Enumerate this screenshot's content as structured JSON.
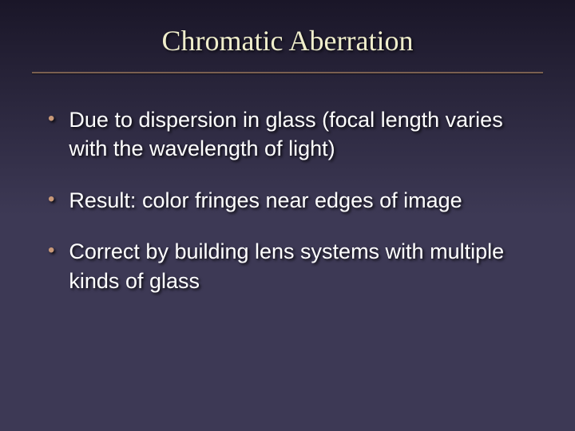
{
  "slide": {
    "title": "Chromatic Aberration",
    "bullets": [
      "Due to dispersion in glass (focal length varies with the wavelength of light)",
      "Result: color fringes near edges of image",
      "Correct by building lens systems with multiple kinds of glass"
    ]
  },
  "styling": {
    "background_gradient_top": "#1a1628",
    "background_gradient_bottom": "#3d3955",
    "title_color": "#f0eecc",
    "title_font": "Times New Roman",
    "title_fontsize": 36,
    "divider_color": "#7a6050",
    "bullet_marker_color": "#c89878",
    "bullet_text_color": "#ffffff",
    "bullet_fontsize": 27,
    "text_shadow": "2px 2px 3px rgba(0,0,0,0.8)",
    "slide_width": 720,
    "slide_height": 540
  }
}
